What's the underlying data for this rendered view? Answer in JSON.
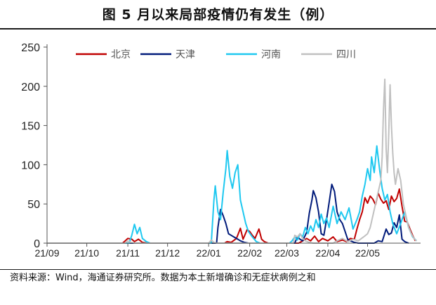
{
  "title": "图    5 月以来局部疫情仍有发生（例）",
  "source": "资料来源：Wind，海通证券研究所。数据为本土新增确诊和无症状病例之和",
  "chart_data": {
    "type": "line",
    "ylim": [
      0,
      250
    ],
    "yticks": [
      0,
      50,
      100,
      150,
      200,
      250
    ],
    "xticks": [
      "21/09",
      "21/10",
      "21/11",
      "21/12",
      "22/01",
      "22/02",
      "22/03",
      "22/04",
      "22/05"
    ],
    "xlim": [
      "2021-09-01",
      "2022-06-10"
    ],
    "grid": false,
    "legend_position": "top",
    "series": [
      {
        "name": "北京",
        "color": "#c00000",
        "points": [
          [
            "2021-09-01",
            0
          ],
          [
            "2021-10-28",
            0
          ],
          [
            "2021-10-30",
            3
          ],
          [
            "2021-11-01",
            6
          ],
          [
            "2021-11-04",
            5
          ],
          [
            "2021-11-06",
            2
          ],
          [
            "2021-11-09",
            5
          ],
          [
            "2021-11-12",
            1
          ],
          [
            "2021-11-16",
            0
          ],
          [
            "2022-01-13",
            0
          ],
          [
            "2022-01-15",
            2
          ],
          [
            "2022-01-18",
            1
          ],
          [
            "2022-01-22",
            6
          ],
          [
            "2022-01-25",
            19
          ],
          [
            "2022-01-27",
            5
          ],
          [
            "2022-01-30",
            17
          ],
          [
            "2022-02-01",
            15
          ],
          [
            "2022-02-03",
            10
          ],
          [
            "2022-02-05",
            6
          ],
          [
            "2022-02-08",
            18
          ],
          [
            "2022-02-10",
            5
          ],
          [
            "2022-02-12",
            2
          ],
          [
            "2022-02-15",
            0
          ],
          [
            "2022-03-10",
            0
          ],
          [
            "2022-03-13",
            3
          ],
          [
            "2022-03-16",
            6
          ],
          [
            "2022-03-19",
            3
          ],
          [
            "2022-03-22",
            9
          ],
          [
            "2022-03-25",
            2
          ],
          [
            "2022-03-28",
            6
          ],
          [
            "2022-04-01",
            3
          ],
          [
            "2022-04-05",
            8
          ],
          [
            "2022-04-08",
            2
          ],
          [
            "2022-04-12",
            4
          ],
          [
            "2022-04-15",
            2
          ],
          [
            "2022-04-18",
            6
          ],
          [
            "2022-04-21",
            5
          ],
          [
            "2022-04-23",
            18
          ],
          [
            "2022-04-25",
            30
          ],
          [
            "2022-04-27",
            40
          ],
          [
            "2022-04-29",
            58
          ],
          [
            "2022-05-01",
            51
          ],
          [
            "2022-05-03",
            60
          ],
          [
            "2022-05-05",
            56
          ],
          [
            "2022-05-07",
            49
          ],
          [
            "2022-05-09",
            64
          ],
          [
            "2022-05-11",
            56
          ],
          [
            "2022-05-13",
            51
          ],
          [
            "2022-05-15",
            54
          ],
          [
            "2022-05-17",
            43
          ],
          [
            "2022-05-19",
            60
          ],
          [
            "2022-05-21",
            53
          ],
          [
            "2022-05-23",
            57
          ],
          [
            "2022-05-25",
            69
          ],
          [
            "2022-05-27",
            47
          ],
          [
            "2022-05-29",
            28
          ],
          [
            "2022-05-31",
            27
          ],
          [
            "2022-06-02",
            18
          ],
          [
            "2022-06-04",
            10
          ],
          [
            "2022-06-06",
            3
          ]
        ]
      },
      {
        "name": "天津",
        "color": "#001a7a",
        "points": [
          [
            "2021-09-01",
            0
          ],
          [
            "2022-01-07",
            0
          ],
          [
            "2022-01-08",
            20
          ],
          [
            "2022-01-10",
            43
          ],
          [
            "2022-01-12",
            35
          ],
          [
            "2022-01-14",
            25
          ],
          [
            "2022-01-16",
            12
          ],
          [
            "2022-01-18",
            10
          ],
          [
            "2022-01-20",
            8
          ],
          [
            "2022-01-22",
            6
          ],
          [
            "2022-01-25",
            3
          ],
          [
            "2022-01-28",
            1
          ],
          [
            "2022-01-31",
            0
          ],
          [
            "2022-03-07",
            0
          ],
          [
            "2022-03-09",
            8
          ],
          [
            "2022-03-11",
            5
          ],
          [
            "2022-03-13",
            3
          ],
          [
            "2022-03-16",
            14
          ],
          [
            "2022-03-18",
            38
          ],
          [
            "2022-03-20",
            55
          ],
          [
            "2022-03-21",
            67
          ],
          [
            "2022-03-23",
            58
          ],
          [
            "2022-03-25",
            40
          ],
          [
            "2022-03-27",
            12
          ],
          [
            "2022-03-29",
            10
          ],
          [
            "2022-03-31",
            30
          ],
          [
            "2022-04-02",
            52
          ],
          [
            "2022-04-04",
            75
          ],
          [
            "2022-04-06",
            66
          ],
          [
            "2022-04-08",
            40
          ],
          [
            "2022-04-10",
            30
          ],
          [
            "2022-04-12",
            25
          ],
          [
            "2022-04-14",
            15
          ],
          [
            "2022-04-16",
            5
          ],
          [
            "2022-04-18",
            3
          ],
          [
            "2022-04-21",
            1
          ],
          [
            "2022-04-24",
            0
          ],
          [
            "2022-05-06",
            0
          ],
          [
            "2022-05-09",
            3
          ],
          [
            "2022-05-12",
            2
          ],
          [
            "2022-05-15",
            18
          ],
          [
            "2022-05-17",
            11
          ],
          [
            "2022-05-19",
            13
          ],
          [
            "2022-05-21",
            26
          ],
          [
            "2022-05-23",
            20
          ],
          [
            "2022-05-25",
            36
          ],
          [
            "2022-05-27",
            5
          ],
          [
            "2022-05-29",
            2
          ],
          [
            "2022-06-01",
            0
          ]
        ]
      },
      {
        "name": "河南",
        "color": "#1ec8f0",
        "points": [
          [
            "2021-09-01",
            0
          ],
          [
            "2021-11-02",
            0
          ],
          [
            "2021-11-04",
            10
          ],
          [
            "2021-11-06",
            24
          ],
          [
            "2021-11-08",
            12
          ],
          [
            "2021-11-10",
            20
          ],
          [
            "2021-11-12",
            6
          ],
          [
            "2021-11-15",
            2
          ],
          [
            "2021-11-18",
            0
          ],
          [
            "2022-01-03",
            0
          ],
          [
            "2022-01-05",
            55
          ],
          [
            "2022-01-06",
            73
          ],
          [
            "2022-01-08",
            40
          ],
          [
            "2022-01-10",
            30
          ],
          [
            "2022-01-12",
            65
          ],
          [
            "2022-01-14",
            95
          ],
          [
            "2022-01-15",
            118
          ],
          [
            "2022-01-17",
            85
          ],
          [
            "2022-01-19",
            70
          ],
          [
            "2022-01-21",
            90
          ],
          [
            "2022-01-23",
            100
          ],
          [
            "2022-01-25",
            55
          ],
          [
            "2022-01-27",
            40
          ],
          [
            "2022-01-29",
            25
          ],
          [
            "2022-01-31",
            15
          ],
          [
            "2022-02-03",
            8
          ],
          [
            "2022-02-06",
            2
          ],
          [
            "2022-02-09",
            0
          ],
          [
            "2022-03-03",
            0
          ],
          [
            "2022-03-05",
            3
          ],
          [
            "2022-03-07",
            8
          ],
          [
            "2022-03-09",
            4
          ],
          [
            "2022-03-11",
            12
          ],
          [
            "2022-03-13",
            8
          ],
          [
            "2022-03-15",
            20
          ],
          [
            "2022-03-17",
            12
          ],
          [
            "2022-03-19",
            22
          ],
          [
            "2022-03-21",
            15
          ],
          [
            "2022-03-23",
            30
          ],
          [
            "2022-03-25",
            20
          ],
          [
            "2022-03-27",
            37
          ],
          [
            "2022-03-29",
            25
          ],
          [
            "2022-03-31",
            32
          ],
          [
            "2022-04-02",
            20
          ],
          [
            "2022-04-05",
            47
          ],
          [
            "2022-04-08",
            25
          ],
          [
            "2022-04-11",
            40
          ],
          [
            "2022-04-14",
            30
          ],
          [
            "2022-04-17",
            45
          ],
          [
            "2022-04-20",
            18
          ],
          [
            "2022-04-23",
            30
          ],
          [
            "2022-04-25",
            40
          ],
          [
            "2022-04-27",
            60
          ],
          [
            "2022-04-29",
            75
          ],
          [
            "2022-05-01",
            95
          ],
          [
            "2022-05-03",
            80
          ],
          [
            "2022-05-04",
            110
          ],
          [
            "2022-05-06",
            90
          ],
          [
            "2022-05-08",
            124
          ],
          [
            "2022-05-10",
            95
          ],
          [
            "2022-05-12",
            70
          ],
          [
            "2022-05-14",
            55
          ],
          [
            "2022-05-16",
            62
          ],
          [
            "2022-05-18",
            40
          ],
          [
            "2022-05-20",
            25
          ],
          [
            "2022-05-23",
            12
          ],
          [
            "2022-05-26",
            25
          ],
          [
            "2022-05-29",
            40
          ],
          [
            "2022-06-01",
            20
          ],
          [
            "2022-06-04",
            8
          ],
          [
            "2022-06-07",
            3
          ]
        ]
      },
      {
        "name": "四川",
        "color": "#c0c0c0",
        "points": [
          [
            "2021-09-01",
            0
          ],
          [
            "2021-10-30",
            0
          ],
          [
            "2021-11-01",
            3
          ],
          [
            "2021-11-03",
            1
          ],
          [
            "2021-11-06",
            0
          ],
          [
            "2022-01-01",
            0
          ],
          [
            "2022-01-03",
            4
          ],
          [
            "2022-01-05",
            1
          ],
          [
            "2022-01-07",
            0
          ],
          [
            "2022-03-06",
            0
          ],
          [
            "2022-03-07",
            10
          ],
          [
            "2022-03-09",
            8
          ],
          [
            "2022-03-11",
            12
          ],
          [
            "2022-03-13",
            6
          ],
          [
            "2022-03-15",
            3
          ],
          [
            "2022-03-18",
            1
          ],
          [
            "2022-03-21",
            0
          ],
          [
            "2022-04-05",
            0
          ],
          [
            "2022-04-08",
            3
          ],
          [
            "2022-04-12",
            6
          ],
          [
            "2022-04-16",
            2
          ],
          [
            "2022-04-20",
            5
          ],
          [
            "2022-04-24",
            3
          ],
          [
            "2022-04-28",
            8
          ],
          [
            "2022-05-01",
            12
          ],
          [
            "2022-05-03",
            20
          ],
          [
            "2022-05-05",
            35
          ],
          [
            "2022-05-07",
            50
          ],
          [
            "2022-05-09",
            65
          ],
          [
            "2022-05-11",
            80
          ],
          [
            "2022-05-12",
            110
          ],
          [
            "2022-05-13",
            170
          ],
          [
            "2022-05-14",
            209
          ],
          [
            "2022-05-15",
            120
          ],
          [
            "2022-05-16",
            90
          ],
          [
            "2022-05-17",
            140
          ],
          [
            "2022-05-18",
            202
          ],
          [
            "2022-05-19",
            150
          ],
          [
            "2022-05-20",
            115
          ],
          [
            "2022-05-21",
            90
          ],
          [
            "2022-05-22",
            75
          ],
          [
            "2022-05-24",
            95
          ],
          [
            "2022-05-26",
            80
          ],
          [
            "2022-05-28",
            50
          ],
          [
            "2022-05-30",
            35
          ],
          [
            "2022-06-01",
            20
          ],
          [
            "2022-06-03",
            12
          ],
          [
            "2022-06-05",
            6
          ],
          [
            "2022-06-07",
            3
          ]
        ]
      }
    ]
  }
}
